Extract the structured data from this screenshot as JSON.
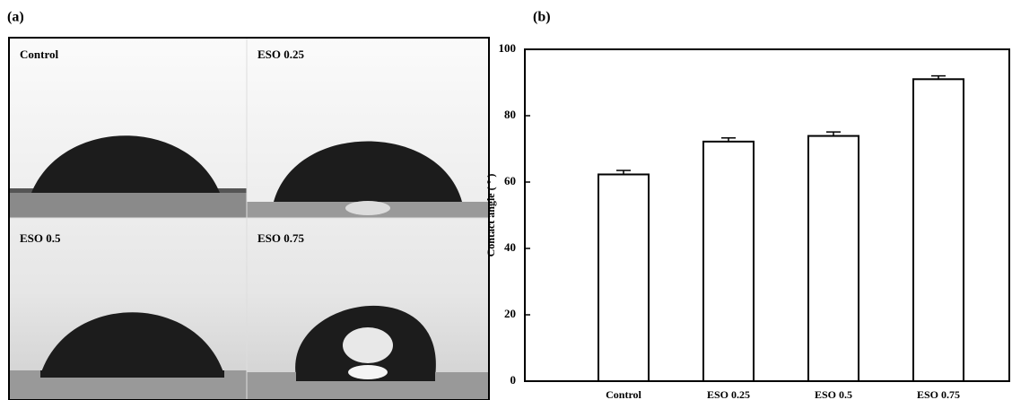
{
  "panel_a": {
    "label": "(a)",
    "images": [
      "Control",
      "ESO 0.25",
      "ESO 0.5",
      "ESO 0.75"
    ]
  },
  "chart_data": {
    "type": "bar",
    "panel_label": "(b)",
    "ylabel": "Contact angle ( ° )",
    "categories": [
      "Control",
      "ESO 0.25",
      "ESO 0.5",
      "ESO 0.75"
    ],
    "values": [
      62.3,
      72.2,
      73.9,
      91.0
    ],
    "errors": [
      1.2,
      1.1,
      1.2,
      1.0
    ],
    "color": "#ffffff",
    "edgecolor": "#000000",
    "ylim": [
      0,
      100
    ],
    "yticks": [
      0,
      20,
      40,
      60,
      80,
      100
    ],
    "grid": false
  }
}
